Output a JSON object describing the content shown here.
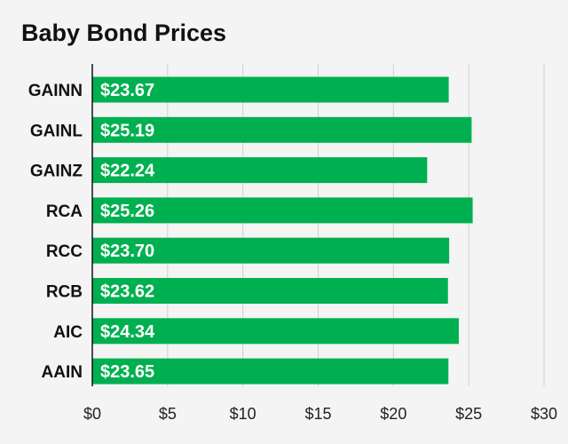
{
  "chart_data": {
    "type": "bar",
    "orientation": "horizontal",
    "title": "Baby Bond Prices",
    "categories": [
      "GAINN",
      "GAINL",
      "GAINZ",
      "RCA",
      "RCC",
      "RCB",
      "AIC",
      "AAIN"
    ],
    "values": [
      23.67,
      25.19,
      22.24,
      25.26,
      23.7,
      23.62,
      24.34,
      23.65
    ],
    "value_labels": [
      "$23.67",
      "$25.19",
      "$22.24",
      "$25.26",
      "$23.70",
      "$23.62",
      "$24.34",
      "$23.65"
    ],
    "xlim": [
      0,
      30
    ],
    "xticks": [
      0,
      5,
      10,
      15,
      20,
      25,
      30
    ],
    "xtick_labels": [
      "$0",
      "$5",
      "$10",
      "$15",
      "$20",
      "$25",
      "$30"
    ],
    "xlabel": "",
    "ylabel": "",
    "grid": "vertical",
    "legend": "none",
    "colors": {
      "bar": "#00b050",
      "grid": "#cfcfcf",
      "axis": "#111111"
    }
  }
}
